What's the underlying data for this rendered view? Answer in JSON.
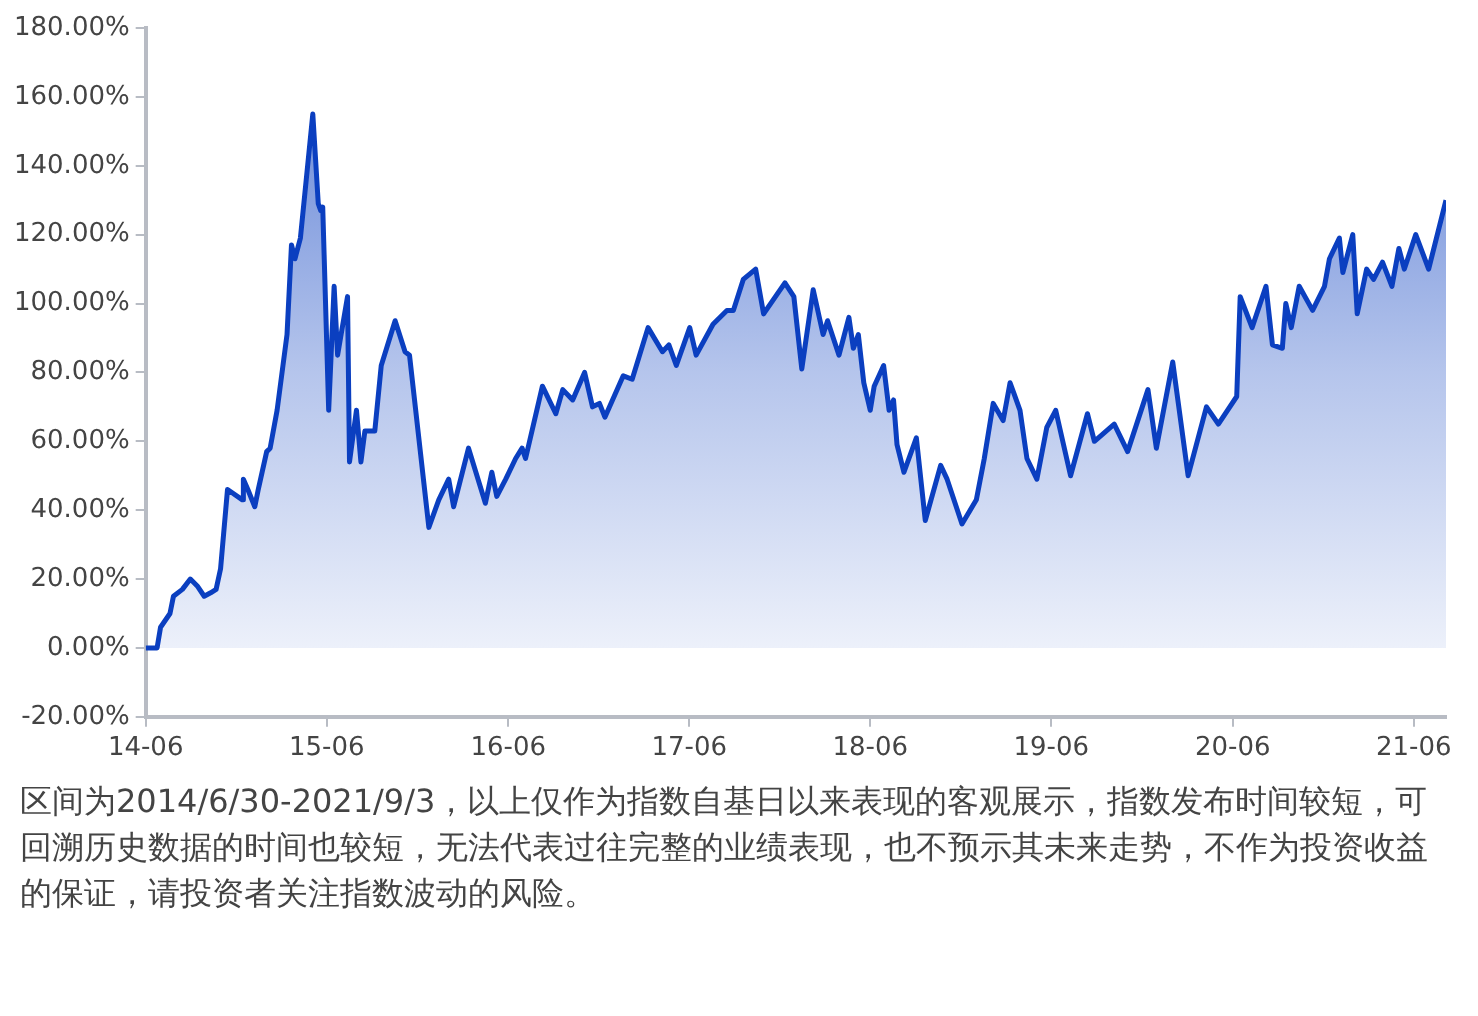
{
  "chart_data": {
    "type": "area",
    "x": [
      "2014-06-30",
      "2014-07-23",
      "2014-07-30",
      "2014-08-18",
      "2014-08-25",
      "2014-09-12",
      "2014-09-28",
      "2014-10-12",
      "2014-10-26",
      "2014-11-08",
      "2014-11-19",
      "2014-11-28",
      "2014-12-12",
      "2015-01-11",
      "2015-01-13",
      "2015-01-22",
      "2015-02-05",
      "2015-02-12",
      "2015-03-01",
      "2015-03-08",
      "2015-03-22",
      "2015-04-11",
      "2015-04-20",
      "2015-04-27",
      "2015-05-08",
      "2015-06-02",
      "2015-06-13",
      "2015-06-18",
      "2015-06-22",
      "2015-07-04",
      "2015-07-15",
      "2015-07-22",
      "2015-08-11",
      "2015-08-15",
      "2015-08-29",
      "2015-09-07",
      "2015-09-15",
      "2015-10-05",
      "2015-10-18",
      "2015-11-15",
      "2015-12-05",
      "2015-12-14",
      "2016-01-22",
      "2016-02-11",
      "2016-03-02",
      "2016-03-12",
      "2016-04-11",
      "2016-05-15",
      "2016-05-28",
      "2016-06-07",
      "2016-06-25",
      "2016-07-15",
      "2016-07-28",
      "2016-08-04",
      "2016-09-07",
      "2016-10-04",
      "2016-10-18",
      "2016-11-07",
      "2016-12-01",
      "2016-12-17",
      "2016-12-31",
      "2017-01-11",
      "2017-02-17",
      "2017-03-07",
      "2017-04-08",
      "2017-05-07",
      "2017-05-20",
      "2017-06-04",
      "2017-07-01",
      "2017-07-14",
      "2017-08-17",
      "2017-09-14",
      "2017-09-27",
      "2017-10-17",
      "2017-11-11",
      "2017-11-27",
      "2018-01-09",
      "2018-01-27",
      "2018-02-12",
      "2018-03-07",
      "2018-03-27",
      "2018-04-05",
      "2018-04-28",
      "2018-05-18",
      "2018-05-27",
      "2018-06-06",
      "2018-06-17",
      "2018-06-30",
      "2018-07-08",
      "2018-07-27",
      "2018-08-07",
      "2018-08-16",
      "2018-08-23",
      "2018-09-06",
      "2018-10-01",
      "2018-10-19",
      "2018-11-19",
      "2018-12-02",
      "2019-01-01",
      "2019-01-30",
      "2019-02-15",
      "2019-03-05",
      "2019-03-25",
      "2019-04-08",
      "2019-04-28",
      "2019-05-12",
      "2019-06-01",
      "2019-06-21",
      "2019-07-09",
      "2019-08-08",
      "2019-09-11",
      "2019-09-25",
      "2019-11-04",
      "2019-12-01",
      "2020-01-11",
      "2020-01-28",
      "2020-03-01",
      "2020-04-01",
      "2020-05-08",
      "2020-06-01",
      "2020-07-08",
      "2020-07-15",
      "2020-08-08",
      "2020-09-05",
      "2020-09-18",
      "2020-10-08",
      "2020-10-15",
      "2020-10-26",
      "2020-11-11",
      "2020-12-08",
      "2021-01-01",
      "2021-01-11",
      "2021-01-31",
      "2021-02-07",
      "2021-02-27",
      "2021-03-08",
      "2021-03-27",
      "2021-04-10",
      "2021-04-28",
      "2021-05-17",
      "2021-05-31",
      "2021-06-11",
      "2021-07-04",
      "2021-07-30",
      "2021-09-03"
    ],
    "series": [
      {
        "color": "#0b3fc0",
        "values": [
          0,
          0,
          6,
          10,
          15,
          17,
          20,
          18,
          15,
          16,
          17,
          23,
          46,
          43,
          49,
          46,
          41,
          46,
          57,
          58,
          69,
          91,
          117,
          113,
          119,
          155,
          129,
          127,
          128,
          69,
          105,
          85,
          102,
          54,
          69,
          54,
          63,
          63,
          82,
          95,
          86,
          85,
          35,
          43,
          49,
          41,
          58,
          42,
          51,
          44,
          49,
          55,
          58,
          55,
          76,
          68,
          75,
          72,
          80,
          70,
          71,
          67,
          79,
          78,
          93,
          86,
          88,
          82,
          93,
          85,
          94,
          98,
          98,
          107,
          110,
          97,
          106,
          102,
          81,
          104,
          91,
          95,
          85,
          96,
          87,
          91,
          77,
          69,
          76,
          82,
          69,
          72,
          59,
          51,
          61,
          37,
          53,
          49,
          36,
          43,
          55,
          71,
          66,
          77,
          69,
          55,
          49,
          64,
          69,
          50,
          68,
          60,
          65,
          57,
          75,
          58,
          83,
          50,
          70,
          65,
          73,
          102,
          93,
          105,
          88,
          87,
          100,
          93,
          105,
          98,
          105,
          113,
          119,
          109,
          120,
          97,
          110,
          107,
          112,
          105,
          116,
          110,
          120,
          110,
          130
        ]
      }
    ],
    "xlim": [
      "2014-06-30",
      "2021-09-03"
    ],
    "xticks": [
      {
        "value": "2014-06-30",
        "label": "14-06"
      },
      {
        "value": "2015-06-30",
        "label": "15-06"
      },
      {
        "value": "2016-06-30",
        "label": "16-06"
      },
      {
        "value": "2017-06-30",
        "label": "17-06"
      },
      {
        "value": "2018-06-30",
        "label": "18-06"
      },
      {
        "value": "2019-06-30",
        "label": "19-06"
      },
      {
        "value": "2020-06-30",
        "label": "20-06"
      },
      {
        "value": "2021-06-30",
        "label": "21-06"
      }
    ],
    "ylim": [
      -20,
      180
    ],
    "yticks": [
      {
        "value": -20,
        "label": "-20.00%"
      },
      {
        "value": 0,
        "label": "0.00%"
      },
      {
        "value": 20,
        "label": "20.00%"
      },
      {
        "value": 40,
        "label": "40.00%"
      },
      {
        "value": 60,
        "label": "60.00%"
      },
      {
        "value": 80,
        "label": "80.00%"
      },
      {
        "value": 100,
        "label": "100.00%"
      },
      {
        "value": 120,
        "label": "120.00%"
      },
      {
        "value": 140,
        "label": "140.00%"
      },
      {
        "value": 160,
        "label": "160.00%"
      },
      {
        "value": 180,
        "label": "180.00%"
      }
    ],
    "grid": false,
    "legend": false,
    "marker": "none",
    "line_style": "solid",
    "annotations": [
      "区间为2014/6/30-2021/9/3，以上仅作为指数自基日以来表现的客观展示，指数发布时间较短，可回溯历史数据的时间也较短，无法代表过往完整的业绩表现，也不预示其未来走势，不作为投资收益的保证，请投资者关注指数波动的风险。"
    ]
  }
}
